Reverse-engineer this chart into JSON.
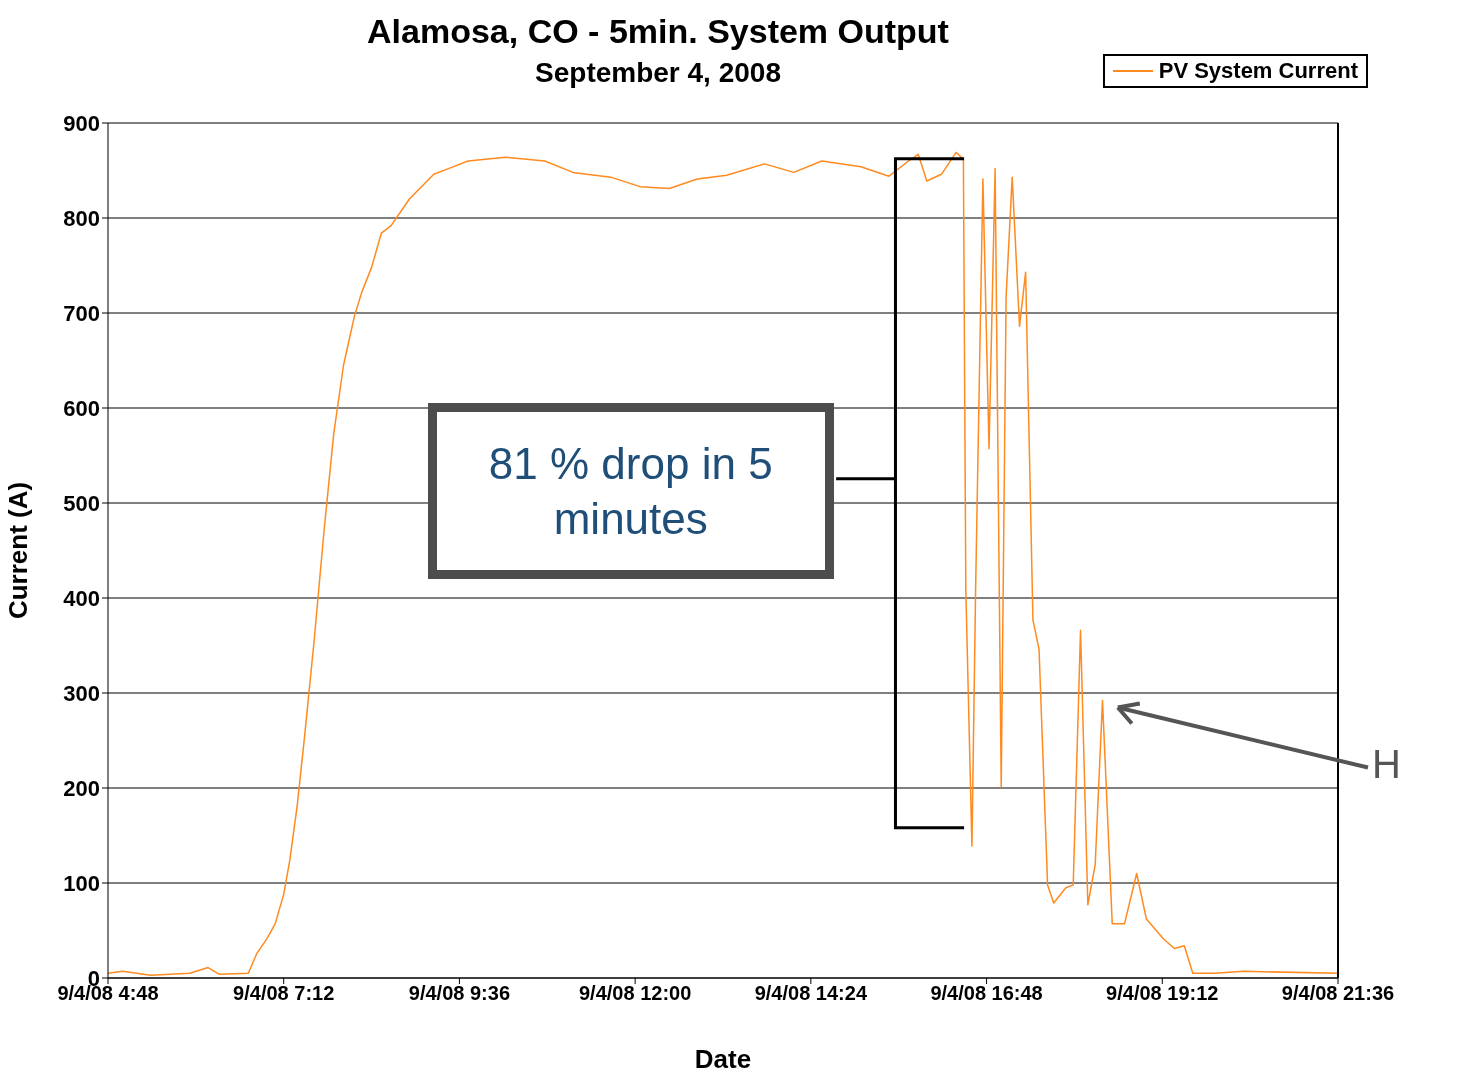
{
  "chart_data": {
    "type": "line",
    "title": "Alamosa, CO - 5min. System Output",
    "subtitle": "September 4, 2008",
    "xlabel": "Date",
    "ylabel": "Current (A)",
    "x": [
      "2008-09-04T04:48",
      "2008-09-04T05:00",
      "2008-09-04T05:23",
      "2008-09-04T05:55",
      "2008-09-04T06:10",
      "2008-09-04T06:19",
      "2008-09-04T06:43",
      "2008-09-04T06:50",
      "2008-09-04T06:58",
      "2008-09-04T07:05",
      "2008-09-04T07:12",
      "2008-09-04T07:17",
      "2008-09-04T07:23",
      "2008-09-04T07:29",
      "2008-09-04T07:37",
      "2008-09-04T07:45",
      "2008-09-04T07:53",
      "2008-09-04T08:01",
      "2008-09-04T08:10",
      "2008-09-04T08:16",
      "2008-09-04T08:24",
      "2008-09-04T08:32",
      "2008-09-04T08:40",
      "2008-09-04T08:55",
      "2008-09-04T09:15",
      "2008-09-04T09:27",
      "2008-09-04T09:43",
      "2008-09-04T10:14",
      "2008-09-04T10:46",
      "2008-09-04T11:09",
      "2008-09-04T11:40",
      "2008-09-04T12:04",
      "2008-09-04T12:28",
      "2008-09-04T12:51",
      "2008-09-04T13:15",
      "2008-09-04T13:46",
      "2008-09-04T14:10",
      "2008-09-04T14:33",
      "2008-09-04T15:05",
      "2008-09-04T15:28",
      "2008-09-04T15:44",
      "2008-09-04T15:52",
      "2008-09-04T15:59",
      "2008-09-04T16:11",
      "2008-09-04T16:23",
      "2008-09-04T16:29",
      "2008-09-04T16:31",
      "2008-09-04T16:36",
      "2008-09-04T16:39",
      "2008-09-04T16:45",
      "2008-09-04T16:50",
      "2008-09-04T16:55",
      "2008-09-04T17:00",
      "2008-09-04T17:04",
      "2008-09-04T17:09",
      "2008-09-04T17:15",
      "2008-09-04T17:20",
      "2008-09-04T17:26",
      "2008-09-04T17:31",
      "2008-09-04T17:38",
      "2008-09-04T17:43",
      "2008-09-04T17:53",
      "2008-09-04T17:59",
      "2008-09-04T18:05",
      "2008-09-04T18:11",
      "2008-09-04T18:17",
      "2008-09-04T18:23",
      "2008-09-04T18:31",
      "2008-09-04T18:41",
      "2008-09-04T18:51",
      "2008-09-04T18:59",
      "2008-09-04T19:13",
      "2008-09-04T19:22",
      "2008-09-04T19:30",
      "2008-09-04T19:37",
      "2008-09-04T19:55",
      "2008-09-04T20:19",
      "2008-09-04T21:36"
    ],
    "series": [
      {
        "name": "PV System Current",
        "color": "#ff8a1f",
        "values": [
          5,
          7,
          3,
          5,
          11,
          4,
          5,
          26,
          41,
          57,
          88,
          124,
          181,
          253,
          356,
          470,
          573,
          645,
          697,
          722,
          748,
          784,
          792,
          820,
          846,
          852,
          860,
          864,
          860,
          848,
          843,
          833,
          831,
          841,
          845,
          857,
          848,
          860,
          854,
          844,
          860,
          867,
          839,
          846,
          869,
          862,
          408,
          139,
          408,
          841,
          557,
          852,
          201,
          717,
          843,
          686,
          743,
          377,
          346,
          98,
          79,
          95,
          98,
          366,
          77,
          119,
          292,
          57,
          57,
          110,
          62,
          41,
          31,
          34,
          5,
          5,
          7,
          5
        ]
      }
    ],
    "xlim": [
      "2008-09-04T04:48",
      "2008-09-04T21:36"
    ],
    "xticks": [
      {
        "value": "2008-09-04T04:48",
        "label": "9/4/08 4:48"
      },
      {
        "value": "2008-09-04T07:12",
        "label": "9/4/08 7:12"
      },
      {
        "value": "2008-09-04T09:36",
        "label": "9/4/08 9:36"
      },
      {
        "value": "2008-09-04T12:00",
        "label": "9/4/08 12:00"
      },
      {
        "value": "2008-09-04T14:24",
        "label": "9/4/08 14:24"
      },
      {
        "value": "2008-09-04T16:48",
        "label": "9/4/08 16:48"
      },
      {
        "value": "2008-09-04T19:12",
        "label": "9/4/08 19:12"
      },
      {
        "value": "2008-09-04T21:36",
        "label": "9/4/08 21:36"
      }
    ],
    "ylim": [
      0,
      900
    ],
    "yticks": [
      0,
      100,
      200,
      300,
      400,
      500,
      600,
      700,
      800,
      900
    ],
    "grid": "y",
    "legend": "top right",
    "marker": "none",
    "line_style": "solid",
    "annotations": [
      "81 % drop in 5 minutes",
      "H"
    ]
  }
}
